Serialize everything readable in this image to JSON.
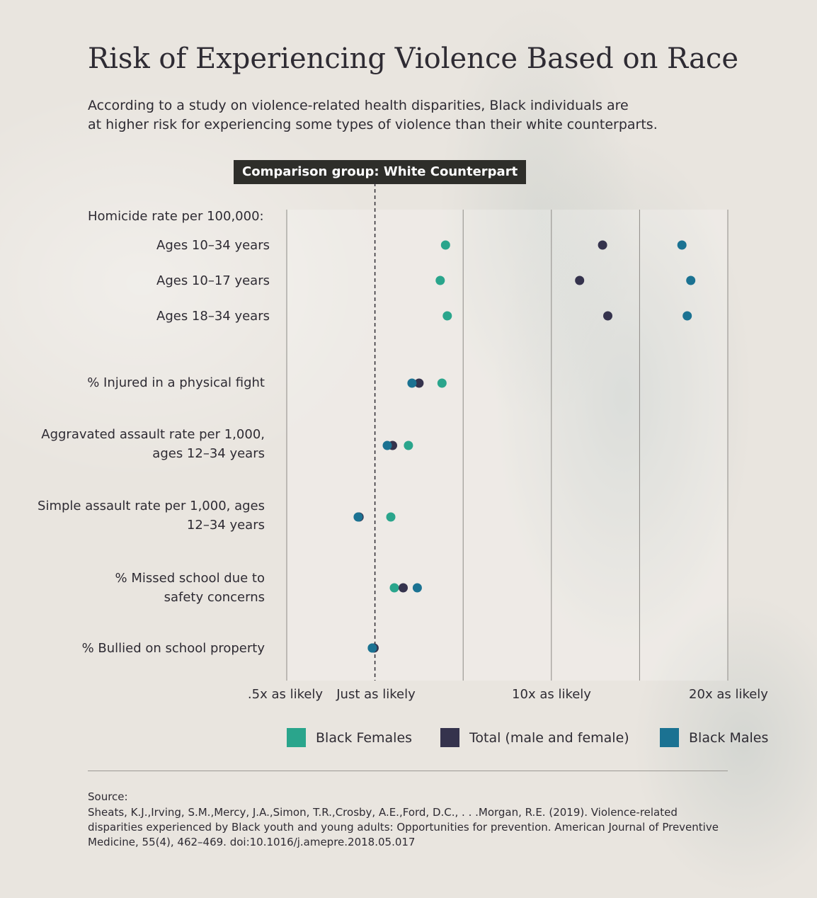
{
  "header": {
    "title": "Risk of Experiencing Violence Based on Race",
    "subtitle_line1": "According to a study on violence-related health disparities, Black individuals are",
    "subtitle_line2": "at higher risk for experiencing some types of violence than their white counterparts.",
    "comparison_banner": "Comparison group: White Counterpart"
  },
  "colors": {
    "black_females": "#2aa58c",
    "total": "#35334d",
    "black_males": "#1b7292",
    "grid": "#8d8a86",
    "reference": "#2e2b33"
  },
  "chart_data": {
    "type": "scatter",
    "group_label": "Homicide rate per 100,000:",
    "categories": [
      {
        "label": [
          "Ages 10–34 years"
        ],
        "sub": true
      },
      {
        "label": [
          "Ages 10–17 years"
        ],
        "sub": true
      },
      {
        "label": [
          "Ages 18–34 years"
        ],
        "sub": true
      },
      {
        "label": [
          "% Injured in a physical fight"
        ],
        "sub": false
      },
      {
        "label": [
          "Aggravated assault rate per 1,000,",
          "ages 12–34 years"
        ],
        "sub": false
      },
      {
        "label": [
          "Simple assault rate per 1,000, ages",
          "12–34 years"
        ],
        "sub": false
      },
      {
        "label": [
          "% Missed school due to",
          "safety concerns"
        ],
        "sub": false
      },
      {
        "label": [
          "% Bullied on school property"
        ],
        "sub": false
      }
    ],
    "series": [
      {
        "name": "Black Females",
        "color": "#2aa58c",
        "values": [
          5.0,
          4.7,
          5.1,
          4.8,
          2.9,
          1.9,
          2.1,
          0.85
        ]
      },
      {
        "name": "Total (male and female)",
        "color": "#35334d",
        "values": [
          13.9,
          12.6,
          14.2,
          3.5,
          2.0,
          0.1,
          2.6,
          0.95
        ]
      },
      {
        "name": "Black Males",
        "color": "#1b7292",
        "values": [
          18.4,
          18.9,
          18.7,
          3.1,
          1.7,
          0.05,
          3.4,
          0.85
        ]
      }
    ],
    "x_ticks": [
      {
        "value": -4,
        "label": ".5x as likely"
      },
      {
        "value": 1,
        "label": "Just as likely"
      },
      {
        "value": 10,
        "label": "10x as likely"
      },
      {
        "value": 20,
        "label": "20x as likely"
      }
    ],
    "xlim": [
      -4,
      21
    ],
    "reference_value": 1,
    "grid": true,
    "legend_position": "bottom"
  },
  "source": {
    "label": "Source:",
    "text": "Sheats, K.J.,Irving, S.M.,Mercy,  J.A.,Simon, T.R.,Crosby, A.E.,Ford, D.C., . . .Morgan, R.E. (2019). Violence-related disparities experienced by Black youth and young adults: Opportunities for prevention. American Journal of Preventive Medicine, 55(4), 462–469. doi:10.1016/j.amepre.2018.05.017"
  }
}
